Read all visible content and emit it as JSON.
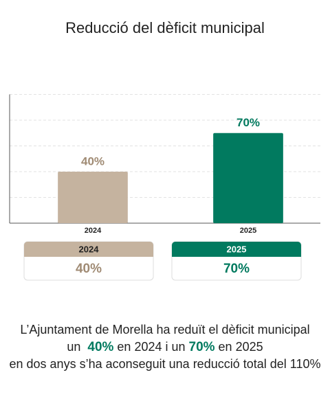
{
  "chart_data": {
    "type": "bar",
    "title": "Reducció del dèficit municipal",
    "categories": [
      "2024",
      "2025"
    ],
    "values": [
      40,
      70
    ],
    "value_labels": [
      "40%",
      "70%"
    ],
    "colors": [
      "#c5b39f",
      "#017a5f"
    ],
    "ylim": [
      0,
      100
    ],
    "yticks": [
      0,
      20,
      40,
      60,
      80,
      100
    ],
    "grid": true,
    "summary": [
      "L’Ajuntament de Morella ha reduït el dèficit municipal",
      [
        "un  ",
        "40%",
        " en 2024 i un ",
        "70%",
        " en 2025"
      ],
      "en dos anys s’ha aconseguit una reducció total del 110%"
    ]
  }
}
